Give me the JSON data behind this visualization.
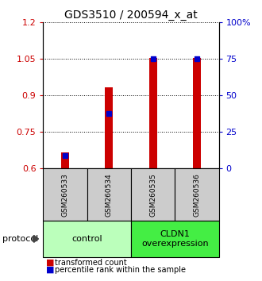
{
  "title": "GDS3510 / 200594_x_at",
  "samples": [
    "GSM260533",
    "GSM260534",
    "GSM260535",
    "GSM260536"
  ],
  "red_values": [
    0.665,
    0.935,
    1.055,
    1.055
  ],
  "blue_values": [
    0.655,
    0.825,
    1.052,
    1.052
  ],
  "ylim_left": [
    0.6,
    1.2
  ],
  "ylim_right": [
    0,
    100
  ],
  "left_ticks": [
    0.6,
    0.75,
    0.9,
    1.05,
    1.2
  ],
  "right_ticks": [
    0,
    25,
    50,
    75,
    100
  ],
  "right_tick_labels": [
    "0",
    "25",
    "50",
    "75",
    "100%"
  ],
  "bar_color": "#cc0000",
  "dot_color": "#0000cc",
  "groups": [
    {
      "label": "control",
      "samples": [
        0,
        1
      ],
      "color": "#bbffbb"
    },
    {
      "label": "CLDN1\noverexpression",
      "samples": [
        2,
        3
      ],
      "color": "#44ee44"
    }
  ],
  "protocol_label": "protocol",
  "legend_red": "transformed count",
  "legend_blue": "percentile rank within the sample",
  "background_color": "#ffffff",
  "sample_bg_color": "#cccccc",
  "bar_width": 0.18
}
